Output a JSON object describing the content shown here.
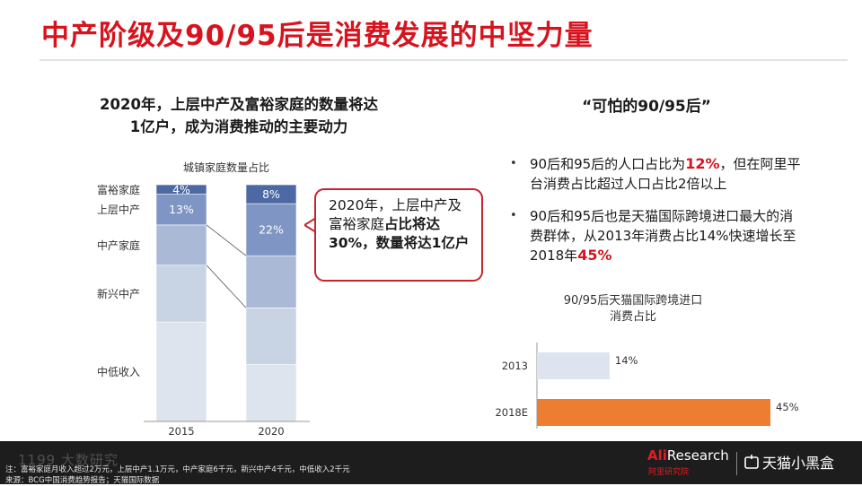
{
  "title": "中产阶级及90/95后是消费发展的中坚力量",
  "left": {
    "heading_line1": "2020年，上层中产及富裕家庭的数量将达",
    "heading_line2": "1亿户，成为消费推动的主要动力"
  },
  "right": {
    "heading": "“可怕的90/95后”",
    "bullets": [
      {
        "pre": "90后和95后的人口占比为",
        "highlight": "12%",
        "post": "，但在阿里平台消费占比超过人口占比2倍以上"
      },
      {
        "pre": "90后和95后也是天猫国际跨境进口最大的消费群体，从2013年消费占比14%快速增长至2018年",
        "highlight": "45%",
        "post": ""
      }
    ]
  },
  "callout": {
    "part1": "2020年，上层中产及富裕家庭",
    "bold": "占比将达30%，数量将达1亿户"
  },
  "chart_data": [
    {
      "type": "bar",
      "stacked": true,
      "title": "城镇家庭数量占比",
      "categories": [
        "2015",
        "2020"
      ],
      "segments": [
        "中低收入",
        "新兴中产",
        "中产家庭",
        "上层中产",
        "富裕家庭"
      ],
      "series": [
        {
          "name": "中低收入",
          "values": [
            42,
            24
          ]
        },
        {
          "name": "新兴中产",
          "values": [
            24,
            24
          ]
        },
        {
          "name": "中产家庭",
          "values": [
            17,
            22
          ]
        },
        {
          "name": "上层中产",
          "values": [
            13,
            22
          ]
        },
        {
          "name": "富裕家庭",
          "values": [
            4,
            8
          ]
        }
      ],
      "data_labels": {
        "2015": {
          "上层中产": "13%",
          "富裕家庭": "4%"
        },
        "2020": {
          "上层中产": "22%",
          "富裕家庭": "8%"
        }
      },
      "ylim": [
        0,
        100
      ],
      "colors": [
        "#dde4ee",
        "#c8d3e4",
        "#aab9d5",
        "#7f95c3",
        "#4d69a3"
      ]
    },
    {
      "type": "bar",
      "orientation": "horizontal",
      "title_line1": "90/95后天猫国际跨境进口",
      "title_line2": "消费占比",
      "categories": [
        "2013",
        "2018E"
      ],
      "values": [
        14,
        45
      ],
      "labels": [
        "14%",
        "45%"
      ],
      "xlim": [
        0,
        45
      ],
      "colors": [
        "#dde3ef",
        "#ec7d31"
      ]
    }
  ],
  "footer": {
    "note": "注：富裕家庭月收入超过2万元，上层中产1.1万元，中产家庭6千元，新兴中产4千元，中低收入2千元",
    "source": "来源：BCG中国消费趋势报告；天猫国际数据",
    "watermark": "1199 大数研究",
    "logo_ali_prefix": "Ali",
    "logo_ali_suffix": "Research",
    "logo_ali_sub": "阿里研究院",
    "logo_tmall": "天猫小黑盒"
  }
}
